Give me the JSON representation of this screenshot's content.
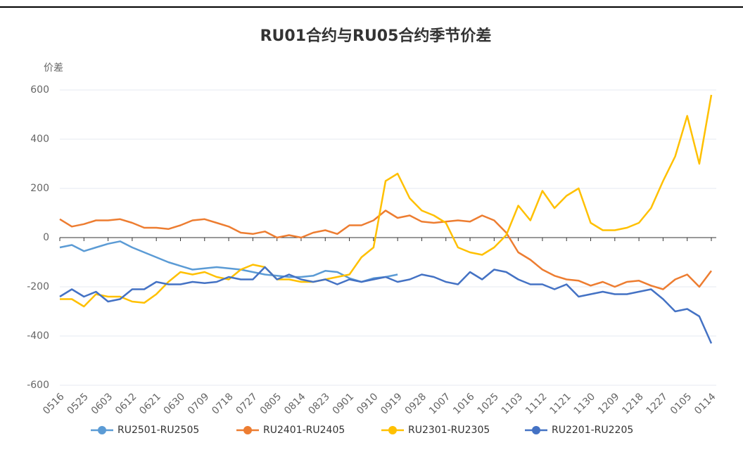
{
  "chart_data": {
    "type": "line",
    "title": "RU01合约与RU05合约季节价差",
    "y_label": "价差",
    "categories": [
      "0516",
      null,
      "0525",
      null,
      "0603",
      null,
      "0612",
      null,
      "0621",
      null,
      "0630",
      null,
      "0709",
      null,
      "0718",
      null,
      "0727",
      null,
      "0805",
      null,
      "0814",
      null,
      "0823",
      null,
      "0901",
      null,
      "0910",
      null,
      "0919",
      null,
      "0928",
      null,
      "1007",
      null,
      "1016",
      null,
      "1025",
      null,
      "1103",
      null,
      "1112",
      null,
      "1121",
      null,
      "1130",
      null,
      "1209",
      null,
      "1218",
      null,
      "1227",
      null,
      "0105",
      null,
      "0114"
    ],
    "ylim": [
      -600,
      600
    ],
    "yticks": [
      -600,
      -400,
      -200,
      0,
      200,
      400,
      600
    ],
    "grid": true,
    "legend": "bottom",
    "series": [
      {
        "name": "RU2501-RU2505",
        "color": "#5b9bd5",
        "values": [
          -40,
          -30,
          -55,
          -40,
          -25,
          -15,
          -40,
          -60,
          -80,
          -100,
          -115,
          -130,
          -125,
          -120,
          -125,
          -130,
          -140,
          -150,
          -155,
          -160,
          -160,
          -155,
          -135,
          -140,
          -165,
          -180,
          -165,
          -160,
          -150,
          null,
          null,
          null,
          null,
          null,
          null,
          null,
          null,
          null,
          null,
          null,
          null,
          null,
          null,
          null,
          null,
          null,
          null,
          null,
          null,
          null,
          null,
          null,
          null,
          null,
          null
        ]
      },
      {
        "name": "RU2401-RU2405",
        "color": "#ed7d31",
        "values": [
          75,
          45,
          55,
          70,
          70,
          75,
          60,
          40,
          40,
          35,
          50,
          70,
          75,
          60,
          45,
          20,
          15,
          25,
          0,
          10,
          0,
          20,
          30,
          15,
          50,
          50,
          70,
          110,
          80,
          90,
          65,
          60,
          65,
          70,
          65,
          90,
          70,
          20,
          -60,
          -90,
          -130,
          -155,
          -170,
          -175,
          -195,
          -180,
          -200,
          -180,
          -175,
          -195,
          -210,
          -170,
          -150,
          -200,
          -135
        ]
      },
      {
        "name": "RU2301-RU2305",
        "color": "#ffc000",
        "values": [
          -250,
          -250,
          -280,
          -230,
          -240,
          -240,
          -260,
          -265,
          -230,
          -180,
          -140,
          -150,
          -140,
          -160,
          -170,
          -130,
          -110,
          -120,
          -170,
          -170,
          -180,
          -180,
          -170,
          -160,
          -150,
          -80,
          -40,
          230,
          260,
          160,
          110,
          90,
          60,
          -40,
          -60,
          -70,
          -40,
          10,
          130,
          70,
          190,
          120,
          170,
          200,
          60,
          30,
          30,
          40,
          60,
          120,
          230,
          330,
          495,
          300,
          580
        ]
      },
      {
        "name": "RU2201-RU2205",
        "color": "#4472c4",
        "values": [
          -240,
          -210,
          -240,
          -220,
          -260,
          -250,
          -210,
          -210,
          -180,
          -190,
          -190,
          -180,
          -185,
          -180,
          -160,
          -170,
          -170,
          -120,
          -170,
          -150,
          -170,
          -180,
          -170,
          -190,
          -170,
          -180,
          -170,
          -160,
          -180,
          -170,
          -150,
          -160,
          -180,
          -190,
          -140,
          -170,
          -130,
          -140,
          -170,
          -190,
          -190,
          -210,
          -190,
          -240,
          -230,
          -220,
          -230,
          -230,
          -220,
          -210,
          -250,
          -300,
          -290,
          -320,
          -430
        ]
      }
    ]
  }
}
